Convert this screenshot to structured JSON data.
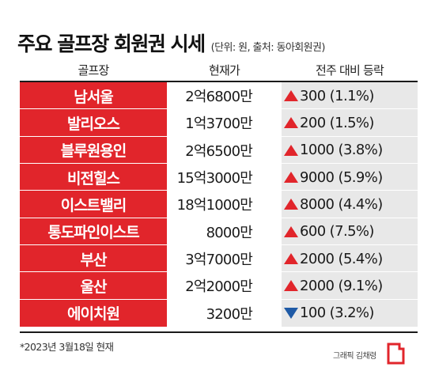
{
  "header": {
    "title": "주요 골프장 회원권 시세",
    "subtitle": "(단위: 원, 출처: 동아회원권)"
  },
  "chart_data": {
    "type": "table",
    "columns": [
      "골프장",
      "현재가",
      "전주 대비 등락"
    ],
    "rows": [
      {
        "name": "남서울",
        "price": "2억6800만",
        "direction": "up",
        "change": "300 (1.1%)"
      },
      {
        "name": "발리오스",
        "price": "1억3700만",
        "direction": "up",
        "change": "200 (1.5%)"
      },
      {
        "name": "블루원용인",
        "price": "2억6500만",
        "direction": "up",
        "change": "1000 (3.8%)"
      },
      {
        "name": "비전힐스",
        "price": "15억3000만",
        "direction": "up",
        "change": "9000 (5.9%)"
      },
      {
        "name": "이스트밸리",
        "price": "18억1000만",
        "direction": "up",
        "change": "8000 (4.4%)"
      },
      {
        "name": "통도파인이스트",
        "price": "8000만",
        "direction": "up",
        "change": "600 (7.5%)"
      },
      {
        "name": "부산",
        "price": "3억7000만",
        "direction": "up",
        "change": "2000 (5.4%)"
      },
      {
        "name": "울산",
        "price": "2억2000만",
        "direction": "up",
        "change": "2000 (9.1%)"
      },
      {
        "name": "에이치원",
        "price": "3200만",
        "direction": "down",
        "change": "100 (3.2%)"
      }
    ]
  },
  "footnote": "*2023년 3월18일 현재",
  "credit": "그래픽 김채령",
  "colors": {
    "accent_red": "#e1252b",
    "up_arrow": "#e1252b",
    "down_arrow": "#1f5aa6",
    "change_bg": "#e8e8e8"
  }
}
